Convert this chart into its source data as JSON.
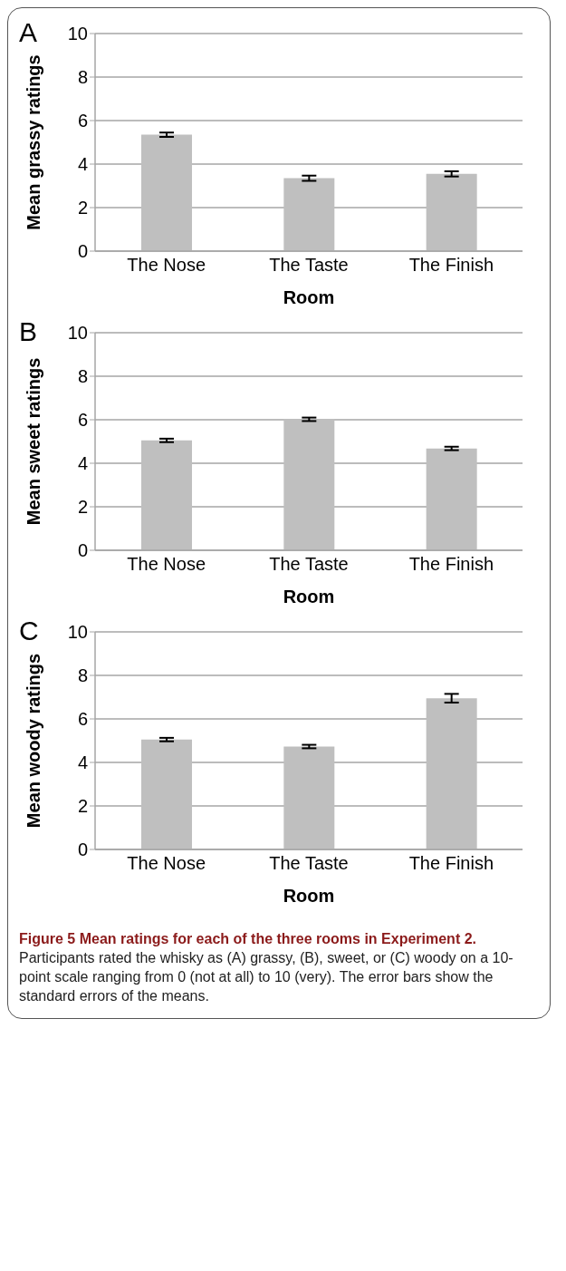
{
  "chart_data": [
    {
      "type": "bar",
      "title": "A",
      "categories": [
        "The Nose",
        "The Taste",
        "The Finish"
      ],
      "values": [
        5.35,
        3.35,
        3.55
      ],
      "errors": [
        0.1,
        0.12,
        0.12
      ],
      "color": "#bfbfbf",
      "ylabel": "Mean grassy ratings",
      "xlabel": "Room",
      "ylim": [
        0,
        10
      ],
      "yticks": [
        0,
        2,
        4,
        6,
        8,
        10
      ],
      "grid": "y"
    },
    {
      "type": "bar",
      "title": "B",
      "categories": [
        "The Nose",
        "The Taste",
        "The Finish"
      ],
      "values": [
        5.05,
        6.02,
        4.68
      ],
      "errors": [
        0.08,
        0.08,
        0.08
      ],
      "color": "#bfbfbf",
      "ylabel": "Mean sweet ratings",
      "xlabel": "Room",
      "ylim": [
        0,
        10
      ],
      "yticks": [
        0,
        2,
        4,
        6,
        8,
        10
      ],
      "grid": "y"
    },
    {
      "type": "bar",
      "title": "C",
      "categories": [
        "The Nose",
        "The Taste",
        "The Finish"
      ],
      "values": [
        5.05,
        4.73,
        6.95
      ],
      "errors": [
        0.08,
        0.08,
        0.2
      ],
      "color": "#bfbfbf",
      "ylabel": "Mean woody ratings",
      "xlabel": "Room",
      "ylim": [
        0,
        10
      ],
      "yticks": [
        0,
        2,
        4,
        6,
        8,
        10
      ],
      "grid": "y",
      "annotations": [
        "Figure 5 Mean ratings for each of the three rooms in Experiment 2.",
        "Participants rated the whisky as (A) grassy, (B), sweet, or (C) woody on a 10-point scale ranging from 0 (not at all) to 10 (very). The error bars show the standard errors of the means."
      ]
    }
  ]
}
